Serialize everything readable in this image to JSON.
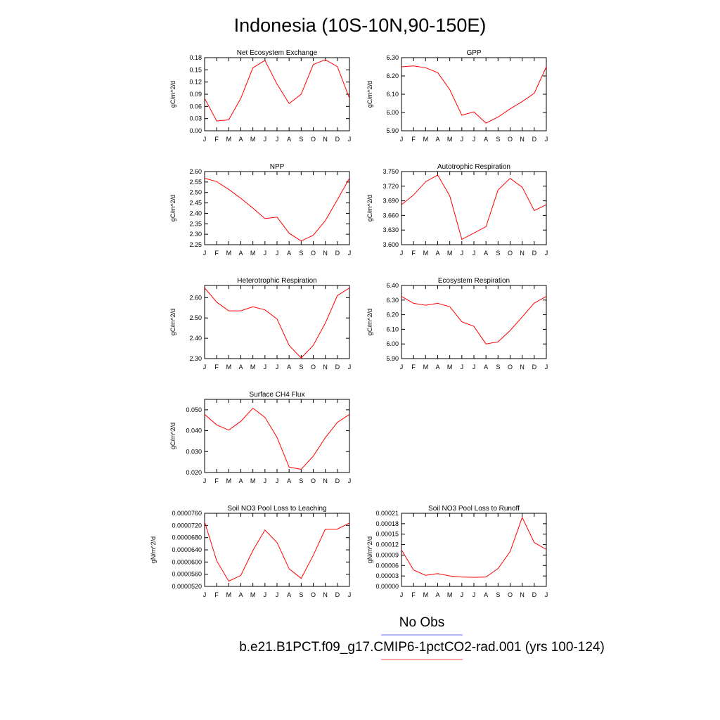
{
  "figure": {
    "title": "Indonesia (10S-10N,90-150E)",
    "line_color": "#ff0000",
    "legend": [
      {
        "label": "No Obs",
        "color": "#8a8aff"
      },
      {
        "label": "b.e21.B1PCT.f09_g17.CMIP6-1pctCO2-rad.001 (yrs 100-124)",
        "color": "#ff6f6f"
      }
    ]
  },
  "chart_data": [
    {
      "type": "line",
      "title": "Net Ecosystem Exchange",
      "ylabel": "gC/m^2/d",
      "categories": [
        "J",
        "F",
        "M",
        "A",
        "M",
        "J",
        "J",
        "A",
        "S",
        "O",
        "N",
        "D",
        "J"
      ],
      "values": [
        0.08,
        0.024,
        0.027,
        0.08,
        0.155,
        0.173,
        0.115,
        0.067,
        0.09,
        0.163,
        0.175,
        0.158,
        0.08
      ],
      "ylim": [
        0,
        0.18
      ],
      "yticks": [
        "0.00",
        "0.03",
        "0.06",
        "0.09",
        "0.12",
        "0.15",
        "0.18"
      ]
    },
    {
      "type": "line",
      "title": "GPP",
      "ylabel": "gC/m^2/d",
      "categories": [
        "J",
        "F",
        "M",
        "A",
        "M",
        "J",
        "J",
        "A",
        "S",
        "O",
        "N",
        "D",
        "J"
      ],
      "values": [
        6.25,
        6.255,
        6.245,
        6.218,
        6.125,
        5.985,
        6.003,
        5.942,
        5.975,
        6.02,
        6.06,
        6.105,
        6.25
      ],
      "ylim": [
        5.9,
        6.3
      ],
      "yticks": [
        "5.90",
        "6.00",
        "6.10",
        "6.20",
        "6.30"
      ]
    },
    {
      "type": "line",
      "title": "NPP",
      "ylabel": "gC/m^2/d",
      "categories": [
        "J",
        "F",
        "M",
        "A",
        "M",
        "J",
        "J",
        "A",
        "S",
        "O",
        "N",
        "D",
        "J"
      ],
      "values": [
        2.568,
        2.552,
        2.515,
        2.472,
        2.425,
        2.375,
        2.382,
        2.305,
        2.268,
        2.295,
        2.365,
        2.465,
        2.568
      ],
      "ylim": [
        2.25,
        2.6
      ],
      "yticks": [
        "2.25",
        "2.30",
        "2.35",
        "2.40",
        "2.45",
        "2.50",
        "2.55",
        "2.60"
      ]
    },
    {
      "type": "line",
      "title": "Autotrophic Respiration",
      "ylabel": "gC/m^2/d",
      "categories": [
        "J",
        "F",
        "M",
        "A",
        "M",
        "J",
        "J",
        "A",
        "S",
        "O",
        "N",
        "D",
        "J"
      ],
      "values": [
        3.682,
        3.702,
        3.729,
        3.743,
        3.7,
        3.611,
        3.624,
        3.637,
        3.712,
        3.736,
        3.718,
        3.67,
        3.682
      ],
      "ylim": [
        3.6,
        3.75
      ],
      "yticks": [
        "3.600",
        "3.630",
        "3.660",
        "3.690",
        "3.720",
        "3.750"
      ]
    },
    {
      "type": "line",
      "title": "Heterotrophic Respiration",
      "ylabel": "gC/m^2/d",
      "categories": [
        "J",
        "F",
        "M",
        "A",
        "M",
        "J",
        "J",
        "A",
        "S",
        "O",
        "N",
        "D",
        "J"
      ],
      "values": [
        2.648,
        2.578,
        2.535,
        2.535,
        2.555,
        2.54,
        2.495,
        2.365,
        2.303,
        2.365,
        2.475,
        2.61,
        2.648
      ],
      "ylim": [
        2.3,
        2.66
      ],
      "yticks": [
        "2.30",
        "2.40",
        "2.50",
        "2.60"
      ]
    },
    {
      "type": "line",
      "title": "Ecosystem Respiration",
      "ylabel": "gC/m^2/d",
      "categories": [
        "J",
        "F",
        "M",
        "A",
        "M",
        "J",
        "J",
        "A",
        "S",
        "O",
        "N",
        "D",
        "J"
      ],
      "values": [
        6.325,
        6.278,
        6.265,
        6.278,
        6.255,
        6.152,
        6.12,
        6.0,
        6.015,
        6.092,
        6.185,
        6.28,
        6.325
      ],
      "ylim": [
        5.9,
        6.4
      ],
      "yticks": [
        "5.90",
        "6.00",
        "6.10",
        "6.20",
        "6.30",
        "6.40"
      ]
    },
    {
      "type": "line",
      "title": "Surface CH4 Flux",
      "ylabel": "gC/m^2/d",
      "categories": [
        "J",
        "F",
        "M",
        "A",
        "M",
        "J",
        "J",
        "A",
        "S",
        "O",
        "N",
        "D",
        "J"
      ],
      "values": [
        0.0478,
        0.0428,
        0.0403,
        0.0445,
        0.0508,
        0.0464,
        0.0368,
        0.0226,
        0.0215,
        0.0278,
        0.0367,
        0.044,
        0.0478
      ],
      "ylim": [
        0.02,
        0.055
      ],
      "yticks": [
        "0.020",
        "0.030",
        "0.040",
        "0.050"
      ]
    },
    null,
    {
      "type": "line",
      "title": "Soil NO3 Pool Loss to Leaching",
      "ylabel": "gN/m^2/d",
      "categories": [
        "J",
        "F",
        "M",
        "A",
        "M",
        "J",
        "J",
        "A",
        "S",
        "O",
        "N",
        "D",
        "J"
      ],
      "values": [
        7.32e-05,
        6.04e-05,
        5.37e-05,
        5.56e-05,
        6.38e-05,
        7.05e-05,
        6.64e-05,
        5.78e-05,
        5.46e-05,
        6.22e-05,
        7.08e-05,
        7.08e-05,
        7.28e-05
      ],
      "ylim": [
        5.2e-05,
        7.6e-05
      ],
      "yticks": [
        "0.0000520",
        "0.0000560",
        "0.0000600",
        "0.0000640",
        "0.0000680",
        "0.0000720",
        "0.0000760"
      ]
    },
    {
      "type": "line",
      "title": "Soil NO3 Pool Loss to Runoff",
      "ylabel": "gN/m^2/d",
      "categories": [
        "J",
        "F",
        "M",
        "A",
        "M",
        "J",
        "J",
        "A",
        "S",
        "O",
        "N",
        "D",
        "J"
      ],
      "values": [
        0.000105,
        4.7e-05,
        3.2e-05,
        3.7e-05,
        3e-05,
        2.7e-05,
        2.6e-05,
        2.7e-05,
        5.1e-05,
        0.0001,
        0.000198,
        0.000126,
        0.000106
      ],
      "ylim": [
        0,
        0.00021
      ],
      "yticks": [
        "0.00000",
        "0.00003",
        "0.00006",
        "0.00009",
        "0.00012",
        "0.00015",
        "0.00018",
        "0.00021"
      ]
    }
  ]
}
